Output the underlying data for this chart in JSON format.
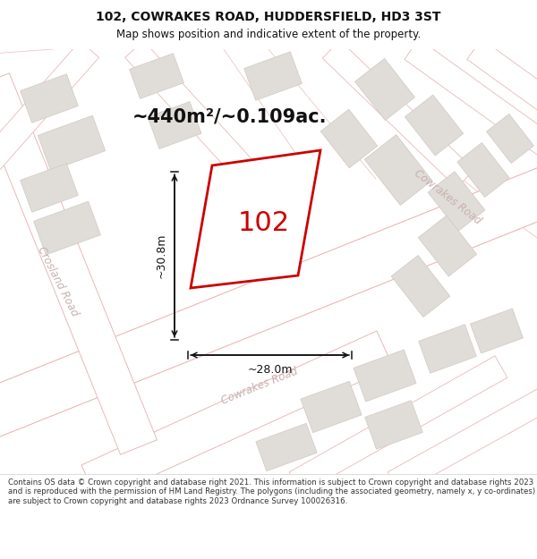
{
  "title": "102, COWRAKES ROAD, HUDDERSFIELD, HD3 3ST",
  "subtitle": "Map shows position and indicative extent of the property.",
  "area_text": "~440m²/~0.109ac.",
  "label_102": "102",
  "dim_horiz": "~28.0m",
  "dim_vert": "~30.8m",
  "footer": "Contains OS data © Crown copyright and database right 2021. This information is subject to Crown copyright and database rights 2023 and is reproduced with the permission of HM Land Registry. The polygons (including the associated geometry, namely x, y co-ordinates) are subject to Crown copyright and database rights 2023 Ordnance Survey 100026316.",
  "bg_color": "#f2f0ed",
  "map_bg": "#f7f6f4",
  "road_color": "#e8b8b8",
  "road_fill": "#ffffff",
  "block_color": "#e0ddd8",
  "block_edge": "#d0c8c0",
  "property_color": "#cc0000",
  "dim_color": "#111111",
  "text_color": "#111111",
  "road_label_color": "#c8b0b0",
  "title_color": "#111111",
  "footer_color": "#333333"
}
